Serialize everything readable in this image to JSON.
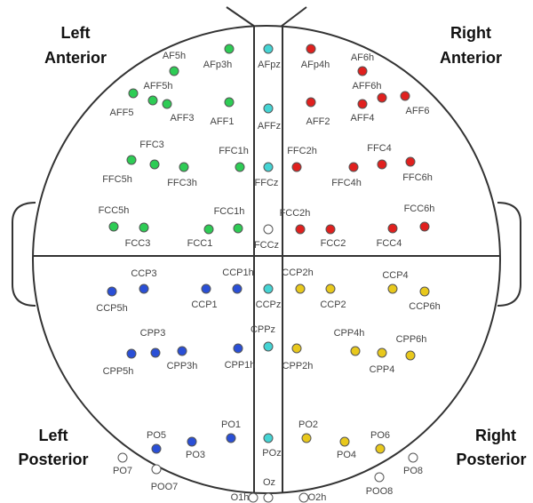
{
  "regions": [
    {
      "lines": [
        "Left",
        "Anterior"
      ]
    },
    {
      "lines": [
        "Right",
        "Anterior"
      ]
    },
    {
      "lines": [
        "Left",
        "Posterior"
      ]
    },
    {
      "lines": [
        "Right",
        "Posterior"
      ]
    }
  ],
  "electrodes": [
    {
      "label": "AF5h",
      "color": "#2ecc55"
    },
    {
      "label": "AFp3h",
      "color": "#2ecc55"
    },
    {
      "label": "AFF5h",
      "color": "#2ecc55"
    },
    {
      "label": "AFF5",
      "color": "#2ecc55"
    },
    {
      "label": "AFF3",
      "color": "#2ecc55"
    },
    {
      "label": "AFF1",
      "color": "#2ecc55"
    },
    {
      "label": "FFC3",
      "color": "#2ecc55"
    },
    {
      "label": "FFC5h",
      "color": "#2ecc55"
    },
    {
      "label": "FFC3h",
      "color": "#2ecc55"
    },
    {
      "label": "FFC1h",
      "color": "#2ecc55"
    },
    {
      "label": "FCC5h",
      "color": "#2ecc55"
    },
    {
      "label": "FCC3",
      "color": "#2ecc55"
    },
    {
      "label": "FCC1h",
      "color": "#2ecc55"
    },
    {
      "label": "FCC1",
      "color": "#2ecc55"
    },
    {
      "label": "AFpz",
      "color": "#45d4d4"
    },
    {
      "label": "AFFz",
      "color": "#45d4d4"
    },
    {
      "label": "FFCz",
      "color": "#45d4d4"
    },
    {
      "label": "FCCz",
      "color": "#ffffff"
    },
    {
      "label": "CCPz",
      "color": "#45d4d4"
    },
    {
      "label": "CPPz",
      "color": "#45d4d4"
    },
    {
      "label": "POz",
      "color": "#45d4d4"
    },
    {
      "label": "Oz",
      "color": "#ffffff"
    },
    {
      "label": "AFp4h",
      "color": "#e0201e"
    },
    {
      "label": "AF6h",
      "color": "#e0201e"
    },
    {
      "label": "AFF6h",
      "color": "#e0201e"
    },
    {
      "label": "AFF4",
      "color": "#e0201e"
    },
    {
      "label": "AFF6",
      "color": "#e0201e"
    },
    {
      "label": "AFF2",
      "color": "#e0201e"
    },
    {
      "label": "FFC2h",
      "color": "#e0201e"
    },
    {
      "label": "FFC4",
      "color": "#e0201e"
    },
    {
      "label": "FFC4h",
      "color": "#e0201e"
    },
    {
      "label": "FFC6h",
      "color": "#e0201e"
    },
    {
      "label": "FCC2h",
      "color": "#e0201e"
    },
    {
      "label": "FCC2",
      "color": "#e0201e"
    },
    {
      "label": "FCC6h",
      "color": "#e0201e"
    },
    {
      "label": "FCC4",
      "color": "#e0201e"
    },
    {
      "label": "CCP3",
      "color": "#2a4fd6"
    },
    {
      "label": "CCP5h",
      "color": "#2a4fd6"
    },
    {
      "label": "CCP1h",
      "color": "#2a4fd6"
    },
    {
      "label": "CCP1",
      "color": "#2a4fd6"
    },
    {
      "label": "CPP3",
      "color": "#2a4fd6"
    },
    {
      "label": "CPP5h",
      "color": "#2a4fd6"
    },
    {
      "label": "CPP3h",
      "color": "#2a4fd6"
    },
    {
      "label": "CPP1h",
      "color": "#2a4fd6"
    },
    {
      "label": "PO5",
      "color": "#2a4fd6"
    },
    {
      "label": "PO3",
      "color": "#2a4fd6"
    },
    {
      "label": "PO1",
      "color": "#2a4fd6"
    },
    {
      "label": "PO7",
      "color": "#ffffff"
    },
    {
      "label": "POO7",
      "color": "#ffffff"
    },
    {
      "label": "O1h",
      "color": "#ffffff"
    },
    {
      "label": "CCP2h",
      "color": "#e8c81c"
    },
    {
      "label": "CCP2",
      "color": "#e8c81c"
    },
    {
      "label": "CCP4",
      "color": "#e8c81c"
    },
    {
      "label": "CCP6h",
      "color": "#e8c81c"
    },
    {
      "label": "CPP2h",
      "color": "#e8c81c"
    },
    {
      "label": "CPP4h",
      "color": "#e8c81c"
    },
    {
      "label": "CPP6h",
      "color": "#e8c81c"
    },
    {
      "label": "CPP4",
      "color": "#e8c81c"
    },
    {
      "label": "PO2",
      "color": "#e8c81c"
    },
    {
      "label": "PO4",
      "color": "#e8c81c"
    },
    {
      "label": "PO6",
      "color": "#e8c81c"
    },
    {
      "label": "PO8",
      "color": "#ffffff"
    },
    {
      "label": "POO8",
      "color": "#ffffff"
    },
    {
      "label": "O2h",
      "color": "#ffffff"
    }
  ]
}
